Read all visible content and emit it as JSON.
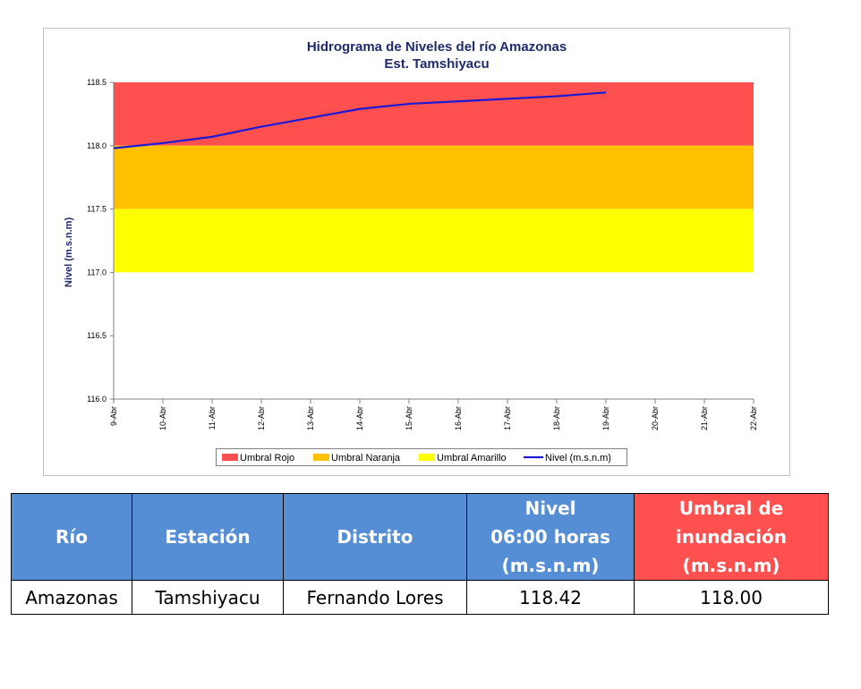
{
  "chart_data": {
    "type": "line",
    "title": "Hidrograma de Niveles del río Amazonas",
    "subtitle": "Est. Tamshiyacu",
    "y_label": "Nivel (m.s.n.m)",
    "categories": [
      "9-Abr",
      "10-Abr",
      "11-Abr",
      "12-Abr",
      "13-Abr",
      "14-Abr",
      "15-Abr",
      "16-Abr",
      "17-Abr",
      "18-Abr",
      "19-Abr",
      "20-Abr",
      "21-Abr",
      "22-Abr"
    ],
    "bands": [
      {
        "name": "Umbral Rojo",
        "color": "#ff5050",
        "values": [
          118,
          118,
          118,
          118,
          118,
          118,
          118,
          118,
          118,
          118,
          118,
          118,
          118,
          118
        ]
      },
      {
        "name": "Umbral Naranja",
        "color": "#ffc000",
        "values": [
          117.5,
          117.5,
          117.5,
          117.5,
          117.5,
          117.5,
          117.5,
          117.5,
          117.5,
          117.5,
          117.5,
          117.5,
          117.5,
          117.5
        ]
      },
      {
        "name": "Umbral Amarillo",
        "color": "#ffff00",
        "values": [
          117,
          117,
          117,
          117,
          117,
          117,
          117,
          117,
          117,
          117,
          117,
          117,
          117,
          117
        ]
      }
    ],
    "series": [
      {
        "name": "Nivel (m.s.n.m)",
        "color": "#1a1ad6",
        "values": [
          117.98,
          118.02,
          118.07,
          118.15,
          118.22,
          118.29,
          118.33,
          118.35,
          118.37,
          118.39,
          118.42,
          null,
          null,
          null
        ]
      }
    ],
    "ylim": [
      116,
      118.5
    ],
    "yticks": [
      {
        "value": 116,
        "label": "116.0"
      },
      116.5,
      {
        "value": 117,
        "label": "117.0"
      },
      117.5,
      {
        "value": 118,
        "label": "118.0"
      },
      118.5
    ]
  },
  "table": {
    "header": [
      [
        "Río"
      ],
      [
        "Estación"
      ],
      [
        "Distrito"
      ],
      [
        "Nivel",
        "06:00 horas",
        "(m.s.n.m)"
      ],
      [
        "Umbral de",
        "inundación",
        "(m.s.n.m)"
      ]
    ],
    "rows": [
      [
        "Amazonas",
        "Tamshiyacu",
        "Fernando Lores",
        "118.42",
        "118.00"
      ]
    ]
  }
}
